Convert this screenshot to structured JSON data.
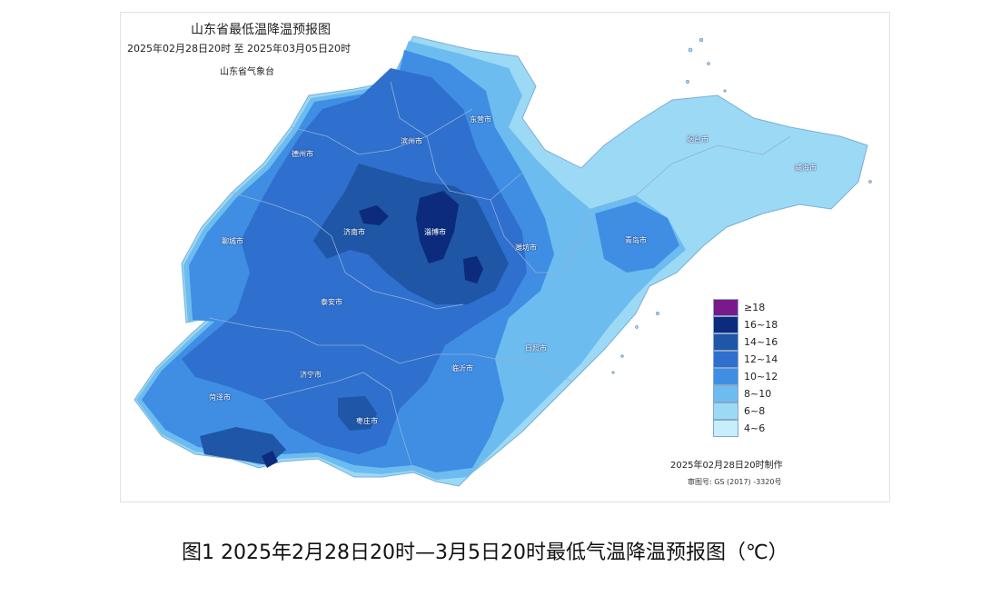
{
  "map": {
    "title": "山东省最低温降温预报图",
    "subtitle": "2025年02月28日20时  至  2025年03月05日20时",
    "agency": "山东省气象台",
    "made_time": "2025年02月28日20时制作",
    "review_number": "审图号: GS (2017) -3320号"
  },
  "cities": [
    {
      "id": "dongying",
      "label": "东营市"
    },
    {
      "id": "binzhou",
      "label": "滨州市"
    },
    {
      "id": "dezhou",
      "label": "德州市"
    },
    {
      "id": "yantai",
      "label": "烟台市"
    },
    {
      "id": "weihai",
      "label": "威海市"
    },
    {
      "id": "liaocheng",
      "label": "聊城市"
    },
    {
      "id": "jinan",
      "label": "济南市"
    },
    {
      "id": "zibo",
      "label": "淄博市"
    },
    {
      "id": "weifang",
      "label": "潍坊市"
    },
    {
      "id": "qingdao",
      "label": "青岛市"
    },
    {
      "id": "taian",
      "label": "泰安市"
    },
    {
      "id": "rizhao",
      "label": "日照市"
    },
    {
      "id": "heze",
      "label": "菏泽市"
    },
    {
      "id": "jining",
      "label": "济宁市"
    },
    {
      "id": "linyi",
      "label": "临沂市"
    },
    {
      "id": "zaozhuang",
      "label": "枣庄市"
    }
  ],
  "legend": [
    {
      "label": "≥18",
      "color": "#7a1a8a"
    },
    {
      "label": "16~18",
      "color": "#0c2b7c"
    },
    {
      "label": "14~16",
      "color": "#1f56a6"
    },
    {
      "label": "12~14",
      "color": "#2f6fce"
    },
    {
      "label": "10~12",
      "color": "#3f8ee4"
    },
    {
      "label": "8~10",
      "color": "#6dbcef"
    },
    {
      "label": "6~8",
      "color": "#9cd9f5"
    },
    {
      "label": "4~6",
      "color": "#c6eefb"
    }
  ],
  "caption": "图1 2025年2月28日20时—3月5日20时最低气温降温预报图（℃）"
}
